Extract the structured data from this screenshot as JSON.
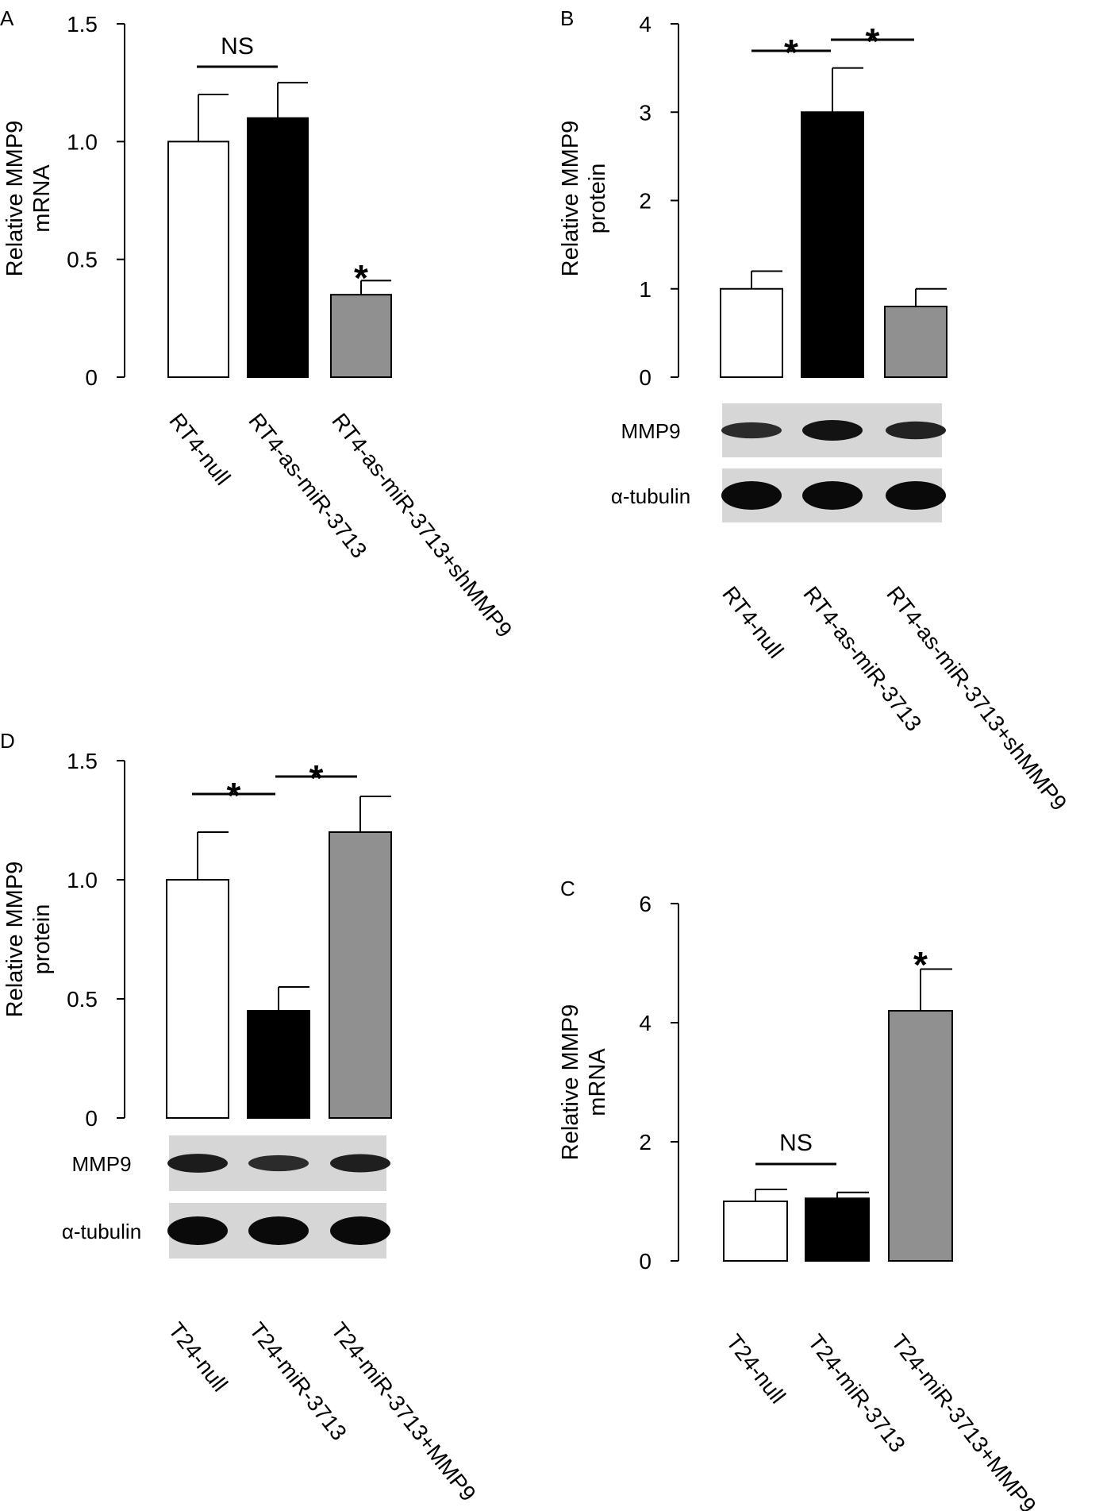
{
  "chart_data": [
    {
      "panel": "A",
      "type": "bar",
      "ylabel": [
        "Relative MMP9",
        "mRNA"
      ],
      "ylim": [
        0,
        1.5
      ],
      "yticks": [
        0,
        0.5,
        1.0,
        1.5
      ],
      "ytick_labels": [
        "0",
        "0.5",
        "1.0",
        "1.5"
      ],
      "categories": [
        "RT4-null",
        "RT4-as-miR-3713",
        "RT4-as-miR-3713+shMMP9"
      ],
      "values": [
        1.0,
        1.1,
        0.35
      ],
      "errors": [
        0.2,
        0.15,
        0.06
      ],
      "colors": [
        "#ffffff",
        "#000000",
        "#909090"
      ],
      "significance": [
        {
          "type": "bracket",
          "from": 0,
          "to": 1,
          "label": "NS"
        },
        {
          "type": "marker",
          "index": 2,
          "label": "*"
        }
      ]
    },
    {
      "panel": "B",
      "type": "bar",
      "ylabel": [
        "Relative MMP9",
        "protein"
      ],
      "ylim": [
        0,
        4
      ],
      "yticks": [
        0,
        1,
        2,
        3,
        4
      ],
      "ytick_labels": [
        "0",
        "1",
        "2",
        "3",
        "4"
      ],
      "categories": [
        "RT4-null",
        "RT4-as-miR-3713",
        "RT4-as-miR-3713+shMMP9"
      ],
      "values": [
        1.0,
        3.0,
        0.8
      ],
      "errors": [
        0.2,
        0.5,
        0.2
      ],
      "colors": [
        "#ffffff",
        "#000000",
        "#909090"
      ],
      "significance": [
        {
          "type": "bracket",
          "from": 0,
          "to": 1,
          "label": "*"
        },
        {
          "type": "bracket",
          "from": 1,
          "to": 2,
          "label": "*"
        }
      ],
      "blots": {
        "rows": [
          "MMP9",
          "α-tubulin"
        ],
        "band_intensity": [
          [
            0.45,
            0.85,
            0.6
          ],
          [
            1.0,
            1.0,
            1.0
          ]
        ]
      }
    },
    {
      "panel": "D",
      "type": "bar",
      "ylabel": [
        "Relative MMP9",
        "protein"
      ],
      "ylim": [
        0,
        1.5
      ],
      "yticks": [
        0,
        0.5,
        1.0,
        1.5
      ],
      "ytick_labels": [
        "0",
        "0.5",
        "1.0",
        "1.5"
      ],
      "categories": [
        "T24-null",
        "T24-miR-3713",
        "T24-miR-3713+MMP9"
      ],
      "values": [
        1.0,
        0.45,
        1.2
      ],
      "errors": [
        0.2,
        0.1,
        0.15
      ],
      "colors": [
        "#ffffff",
        "#000000",
        "#909090"
      ],
      "significance": [
        {
          "type": "bracket",
          "from": 0,
          "to": 1,
          "label": "*"
        },
        {
          "type": "bracket",
          "from": 1,
          "to": 2,
          "label": "*"
        }
      ],
      "blots": {
        "rows": [
          "MMP9",
          "α-tubulin"
        ],
        "band_intensity": [
          [
            0.7,
            0.45,
            0.65
          ],
          [
            1.0,
            1.0,
            1.0
          ]
        ]
      }
    },
    {
      "panel": "C",
      "type": "bar",
      "ylabel": [
        "Relative MMP9",
        "mRNA"
      ],
      "ylim": [
        0,
        6
      ],
      "yticks": [
        0,
        2,
        4,
        6
      ],
      "ytick_labels": [
        "0",
        "2",
        "4",
        "6"
      ],
      "categories": [
        "T24-null",
        "T24-miR-3713",
        "T24-miR-3713+MMP9"
      ],
      "values": [
        1.0,
        1.05,
        4.2
      ],
      "errors": [
        0.2,
        0.1,
        0.7
      ],
      "colors": [
        "#ffffff",
        "#000000",
        "#909090"
      ],
      "significance": [
        {
          "type": "bracket",
          "from": 0,
          "to": 1,
          "label": "NS"
        },
        {
          "type": "marker",
          "index": 2,
          "label": "*"
        }
      ]
    }
  ]
}
